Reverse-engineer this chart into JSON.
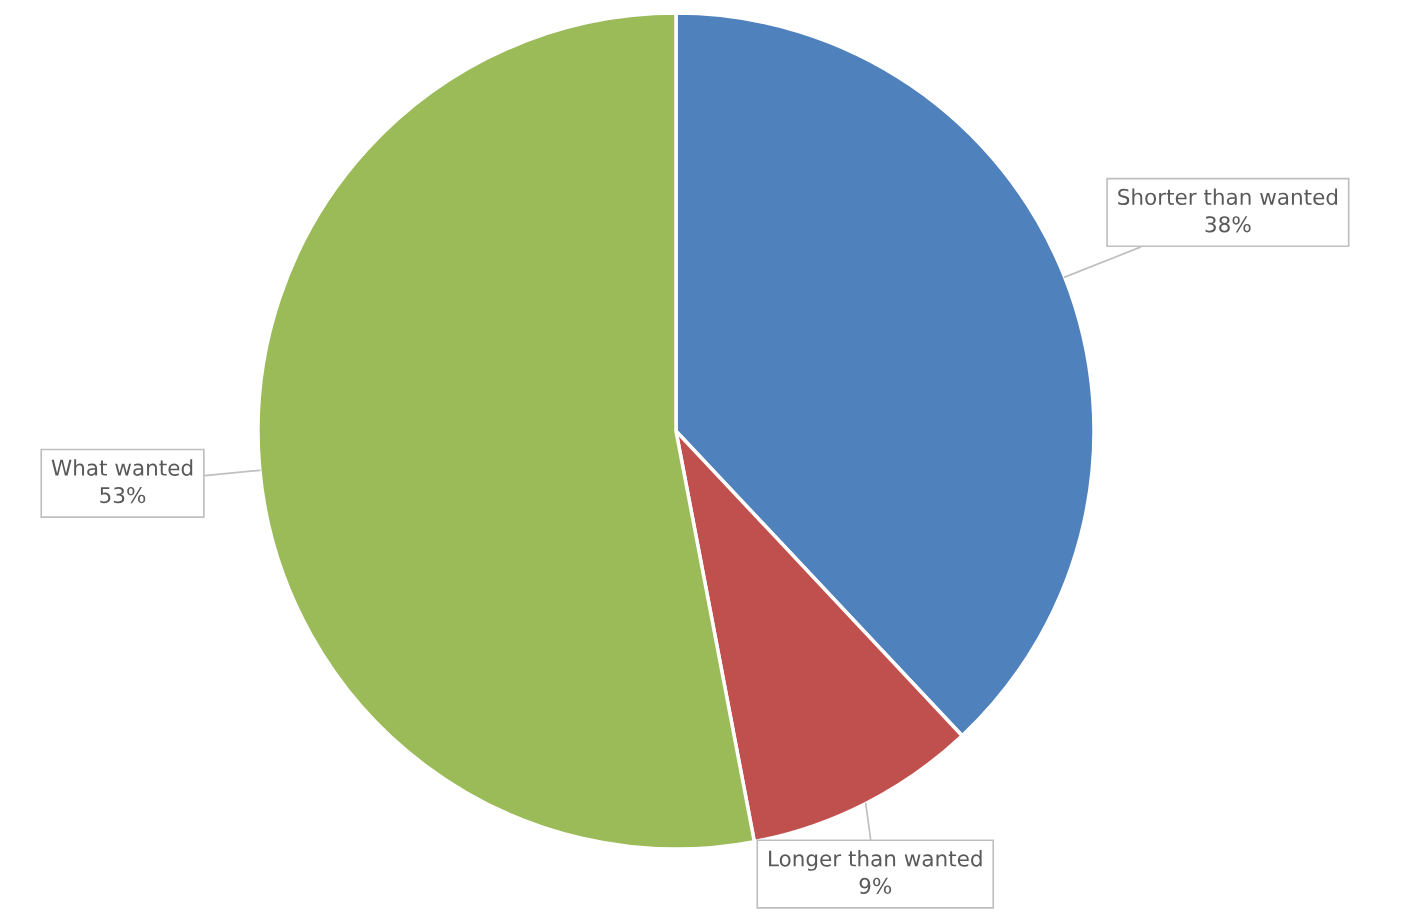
{
  "chart_data": {
    "type": "pie",
    "categories": [
      "Shorter than wanted",
      "Longer than wanted",
      "What wanted"
    ],
    "values": [
      38,
      9,
      53
    ],
    "colors": [
      "#4f81bd",
      "#c0504d",
      "#9bbb59"
    ],
    "value_labels": [
      "38%",
      "9%",
      "53%"
    ]
  }
}
